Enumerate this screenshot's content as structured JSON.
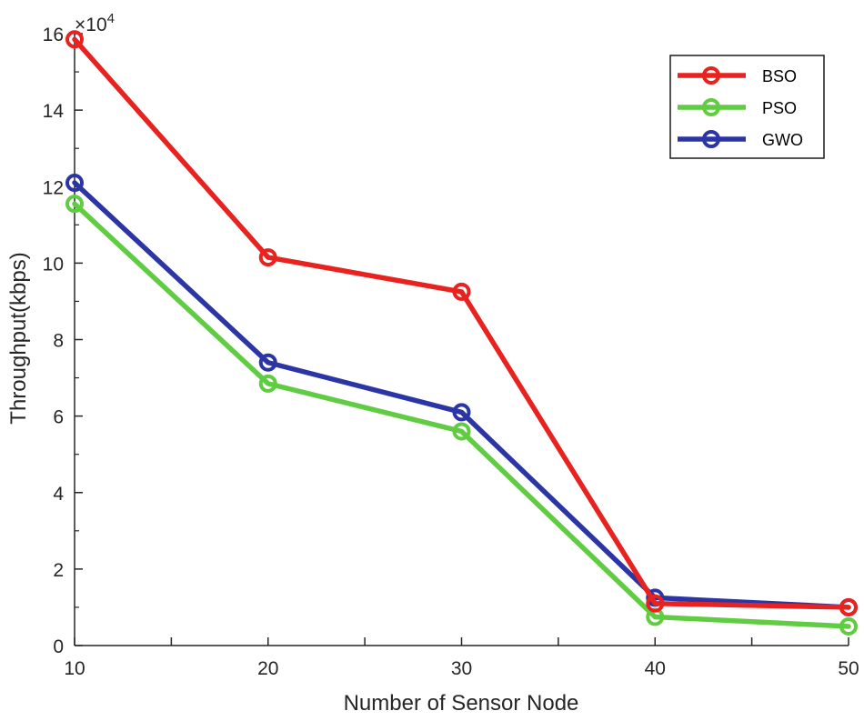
{
  "chart_data": {
    "type": "line",
    "title": "",
    "xlabel": "Number of Sensor Node",
    "ylabel": "Throughput(kbps)",
    "y_multiplier_label": "×10",
    "y_multiplier_exponent": "4",
    "x": [
      10,
      20,
      30,
      40,
      50
    ],
    "xlim": [
      10,
      50
    ],
    "ylim": [
      0,
      16
    ],
    "x_ticks": [
      10,
      20,
      30,
      40,
      50
    ],
    "x_minor_ticks": [
      15,
      25,
      35,
      45
    ],
    "y_ticks": [
      0,
      2,
      4,
      6,
      8,
      10,
      12,
      14,
      16
    ],
    "y_minor_ticks": [
      1,
      3,
      5,
      7,
      9,
      11,
      13,
      15
    ],
    "grid": false,
    "legend_position": "top-right",
    "series": [
      {
        "name": "BSO",
        "color": "#e8221f",
        "values": [
          15.85,
          10.15,
          9.25,
          1.1,
          1.0
        ]
      },
      {
        "name": "PSO",
        "color": "#5fcc41",
        "values": [
          11.55,
          6.85,
          5.6,
          0.75,
          0.5
        ]
      },
      {
        "name": "GWO",
        "color": "#2b35a5",
        "values": [
          12.1,
          7.4,
          6.1,
          1.25,
          1.0
        ]
      }
    ]
  }
}
